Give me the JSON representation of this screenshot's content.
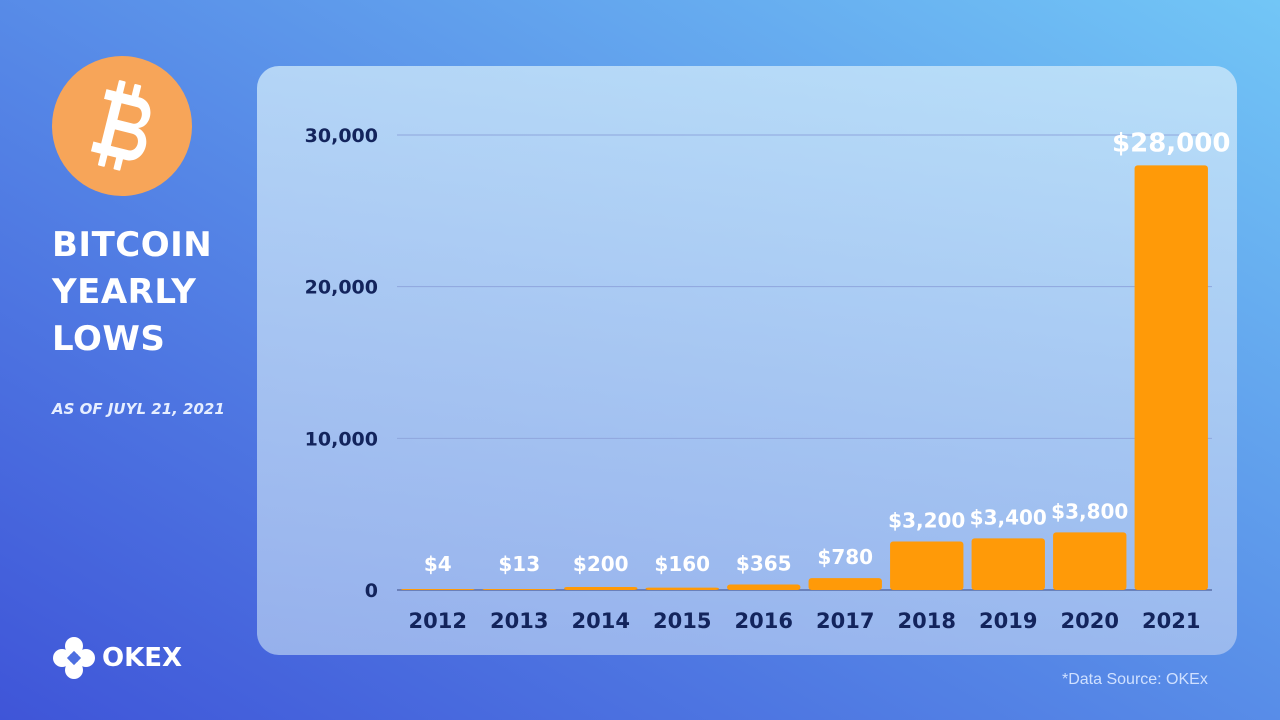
{
  "header": {
    "title_lines": [
      "BITCOIN",
      "YEARLY",
      "LOWS"
    ],
    "subtitle": "AS OF JUYL 21, 2021"
  },
  "brand": {
    "name": "OKEX",
    "icon": "okex-logo-icon"
  },
  "bitcoin_icon": "bitcoin-logo-icon",
  "footer": {
    "source": "*Data Source: OKEx"
  },
  "colors": {
    "bar": "#ff9a08",
    "axis_text": "#13245c",
    "label_text": "#ffffff",
    "bitcoin": "#f7a559"
  },
  "chart_data": {
    "type": "bar",
    "categories": [
      "2012",
      "2013",
      "2014",
      "2015",
      "2016",
      "2017",
      "2018",
      "2019",
      "2020",
      "2021"
    ],
    "values": [
      4,
      13,
      200,
      160,
      365,
      780,
      3200,
      3400,
      3800,
      28000
    ],
    "data_labels": [
      "$4",
      "$13",
      "$200",
      "$160",
      "$365",
      "$780",
      "$3,200",
      "$3,400",
      "$3,800",
      "$28,000"
    ],
    "yticks": [
      0,
      10000,
      20000,
      30000
    ],
    "ytick_labels": [
      "0",
      "10,000",
      "20,000",
      "30,000"
    ],
    "ylim": [
      0,
      30000
    ],
    "grid": true,
    "legend": false
  }
}
